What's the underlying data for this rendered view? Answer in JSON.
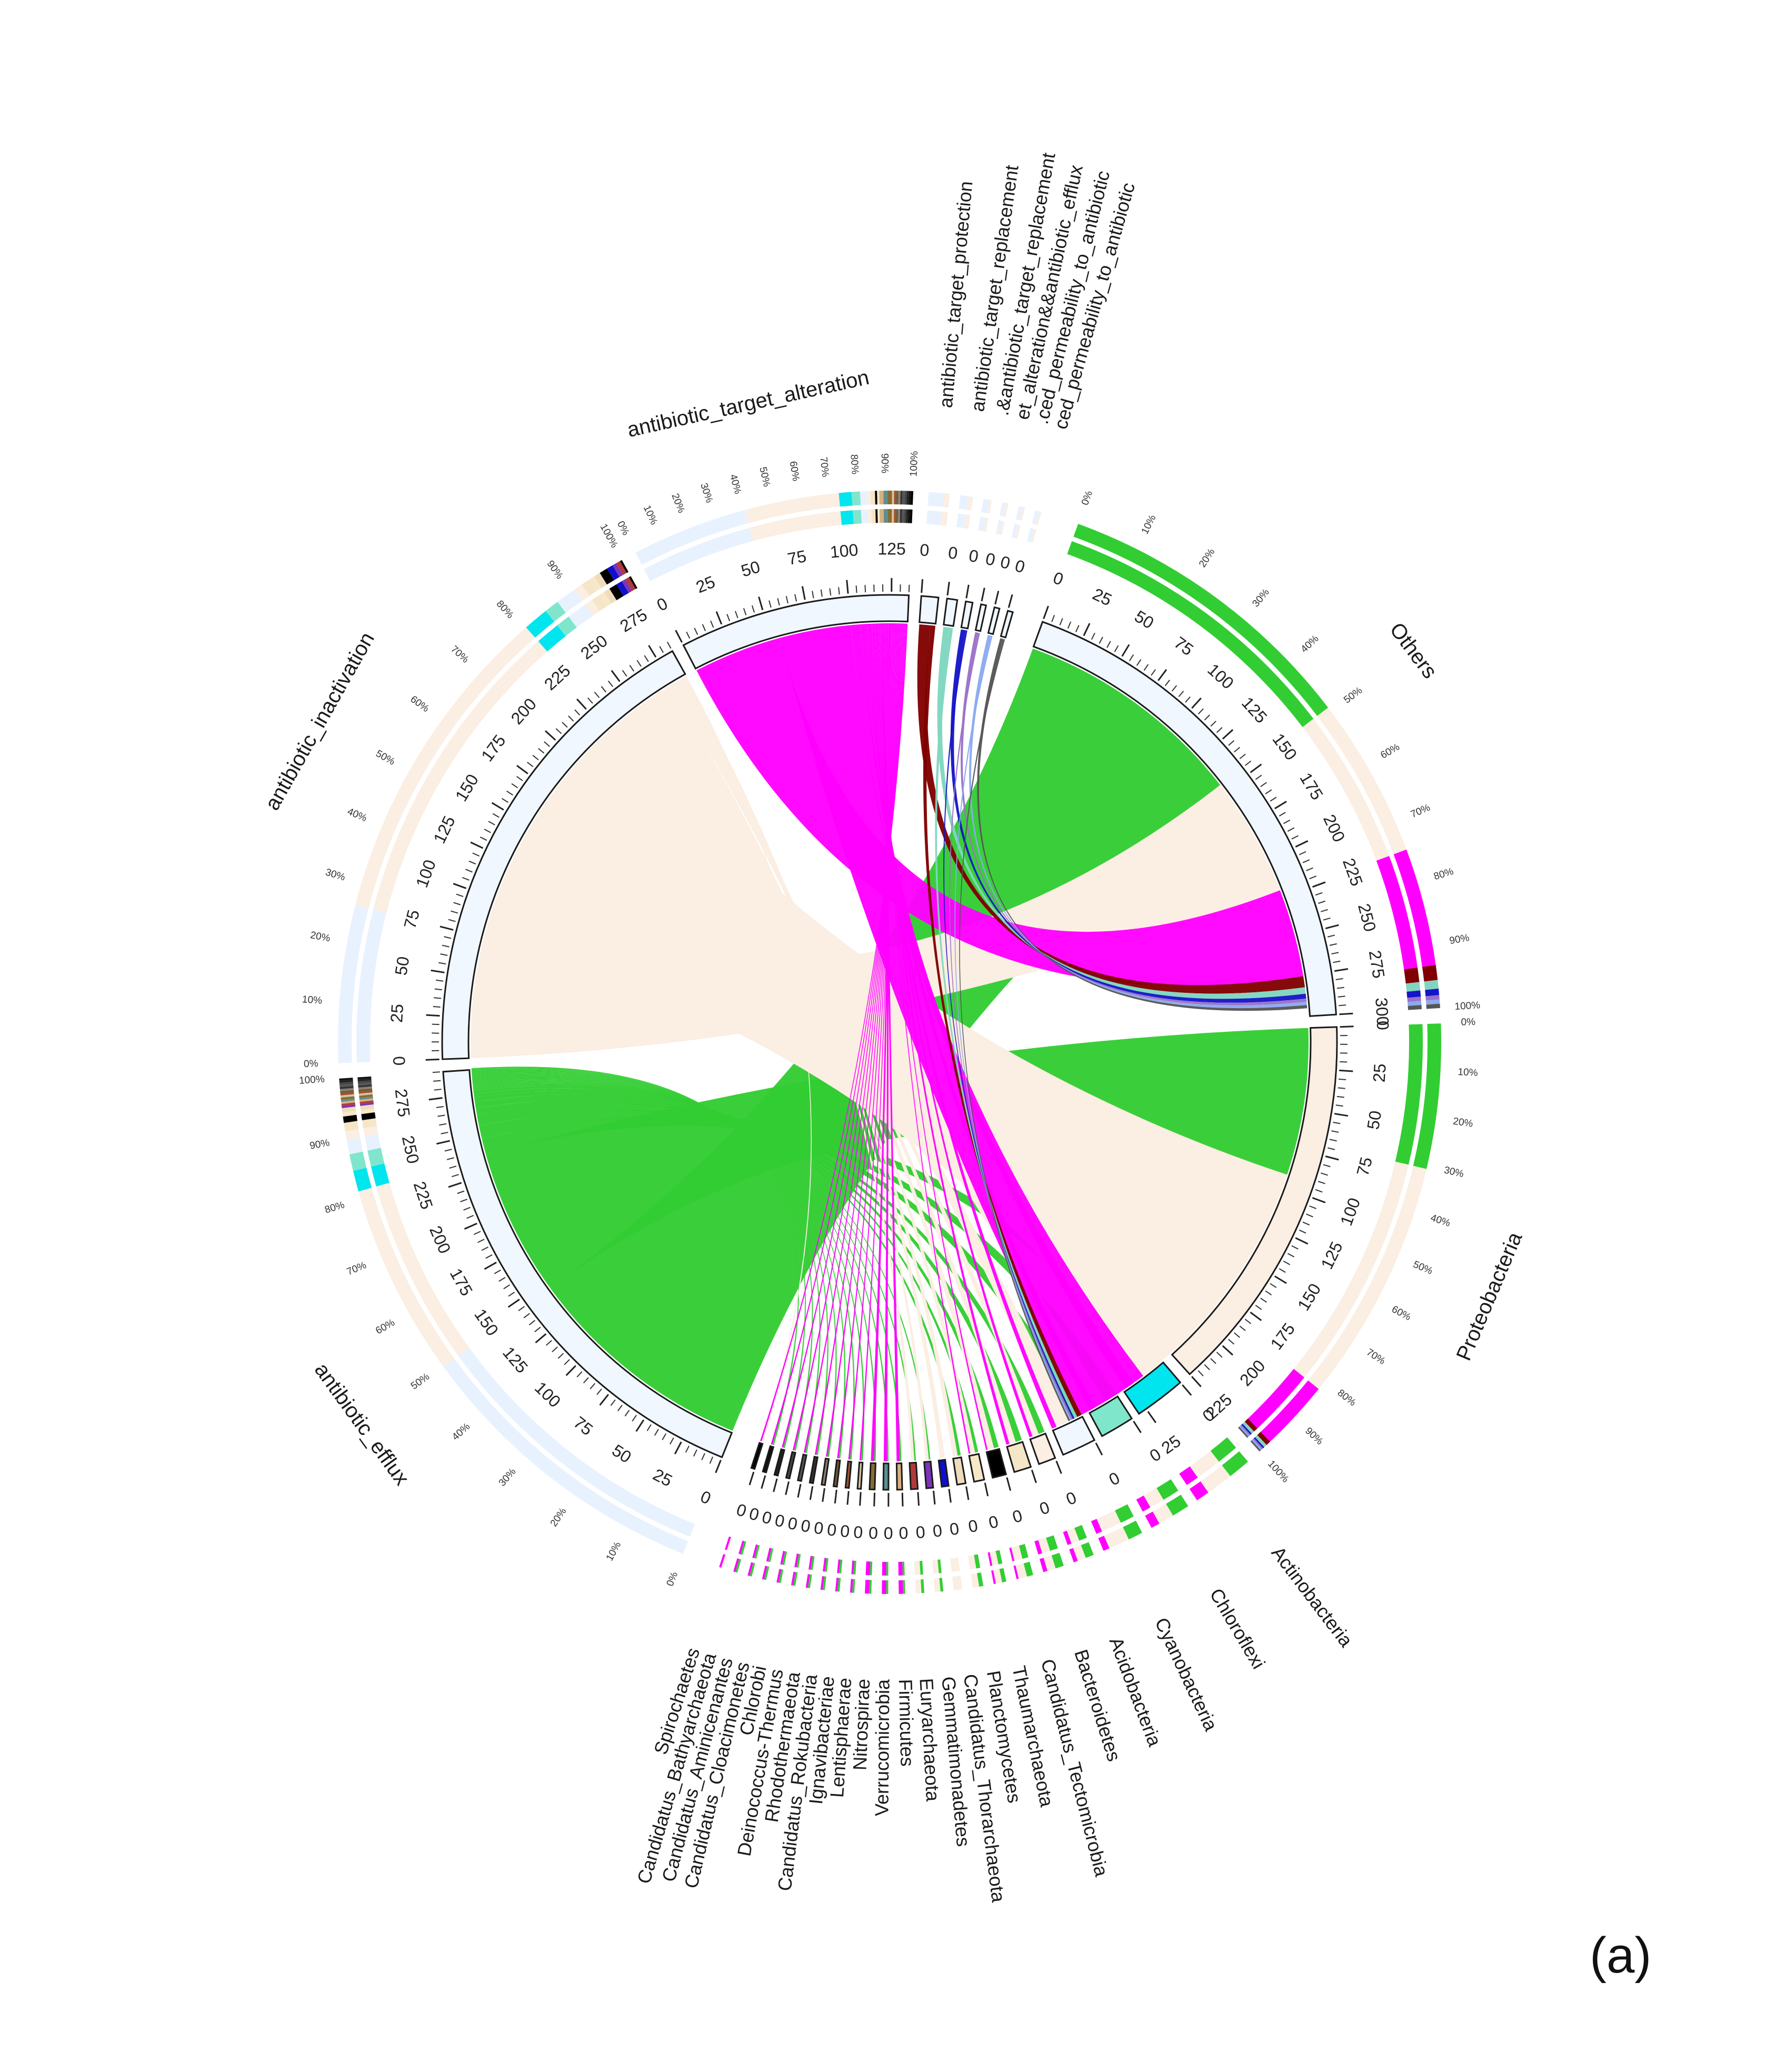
{
  "chart_data": {
    "type": "chord",
    "panel_label": "(a)",
    "mechanisms": [
      {
        "label": "antibiotic_efflux",
        "value": 290,
        "color": "#f0f7ff"
      },
      {
        "label": "antibiotic_inactivation",
        "value": 285,
        "color": "#f0f7ff"
      },
      {
        "label": "antibiotic_target_alteration",
        "value": 135,
        "color": "#f0f7ff"
      },
      {
        "label": "antibiotic_target_protection",
        "value": 10,
        "color": "#f0f7ff"
      },
      {
        "label": "antibiotic_target_replacement",
        "value": 6,
        "color": "#f0f7ff"
      },
      {
        "label": ".&antibiotic_target_replacement",
        "value": 4,
        "color": "#f0f7ff"
      },
      {
        "label": "et_alteration&&antibiotic_efflux",
        "value": 3,
        "color": "#f0f7ff"
      },
      {
        "label": ".ced_permeability_to_antibiotic",
        "value": 3,
        "color": "#f0f7ff"
      },
      {
        "label": "ced_permeability_to_antibiotic",
        "value": 3,
        "color": "#f0f7ff"
      }
    ],
    "phyla": [
      {
        "label": "Others",
        "value": 300,
        "color": "#f0f7ff"
      },
      {
        "label": "Proteobacteria",
        "value": 225,
        "color": "#fbeee2"
      },
      {
        "label": "Actinobacteria",
        "value": 30,
        "color": "#00e5ee"
      },
      {
        "label": "Chloroflexi",
        "value": 20,
        "color": "#7fe6cc"
      },
      {
        "label": "Cyanobacteria",
        "value": 20,
        "color": "#f0f7ff"
      },
      {
        "label": "Acidobacteria",
        "value": 10,
        "color": "#fbeee2"
      },
      {
        "label": "Bacteroidetes",
        "value": 10,
        "color": "#f5e6c8"
      },
      {
        "label": "Candidatus_Tectomicrobia",
        "value": 8,
        "color": "#000000"
      },
      {
        "label": "Thaumarchaeota",
        "value": 6,
        "color": "#f7e8c8"
      },
      {
        "label": "Planctomycetes",
        "value": 5,
        "color": "#eedcbb"
      },
      {
        "label": "Candidatus_Thorarchaeota",
        "value": 4,
        "color": "#1010cc"
      },
      {
        "label": "Gemmatimonadetes",
        "value": 4,
        "color": "#7a35b5"
      },
      {
        "label": "Euryarchaeota",
        "value": 4,
        "color": "#b03a3a"
      },
      {
        "label": "Firmicutes",
        "value": 3,
        "color": "#d8b080"
      },
      {
        "label": "Verrucomicrobia",
        "value": 3,
        "color": "#5d8f8f"
      },
      {
        "label": "Nitrospirae",
        "value": 3,
        "color": "#8a6a30"
      },
      {
        "label": "Lentisphaerae",
        "value": 2,
        "color": "#d7c2a0"
      },
      {
        "label": "Ignavibacteriae",
        "value": 2,
        "color": "#a0522d"
      },
      {
        "label": "Candidatus_Rokubacteria",
        "value": 2,
        "color": "#6e5a3a"
      },
      {
        "label": "Rhodothermaeota",
        "value": 2,
        "color": "#8f7f6f"
      },
      {
        "label": "Deinococcus-Thermus",
        "value": 2,
        "color": "#333333"
      },
      {
        "label": "Chlorobi",
        "value": 2,
        "color": "#555555"
      },
      {
        "label": "Candidatus_Cloacimonetes",
        "value": 2,
        "color": "#444444"
      },
      {
        "label": "Candidatus_Aminicenantes",
        "value": 2,
        "color": "#222222"
      },
      {
        "label": "Candidatus_Bathyarchaeota",
        "value": 2,
        "color": "#111111"
      },
      {
        "label": "Spirochaetes",
        "value": 2,
        "color": "#000000"
      }
    ],
    "mechanism_link_colors": {
      "antibiotic_efflux": "#32cd32",
      "antibiotic_inactivation": "#fbeee2",
      "antibiotic_target_alteration": "#ff00ff",
      "antibiotic_target_protection": "#800000",
      "antibiotic_target_replacement": "#7fd6c0",
      ".&antibiotic_target_replacement": "#1515c8",
      "et_alteration&&antibiotic_efflux": "#9a70c8",
      ".ced_permeability_to_antibiotic": "#8aaaf0",
      "ced_permeability_to_antibiotic": "#555555"
    },
    "links": [
      {
        "mechanism": "antibiotic_efflux",
        "phylum": "Others",
        "value": 145
      },
      {
        "mechanism": "antibiotic_efflux",
        "phylum": "Proteobacteria",
        "value": 92
      },
      {
        "mechanism": "antibiotic_efflux",
        "phylum": "Actinobacteria",
        "value": 10
      },
      {
        "mechanism": "antibiotic_efflux",
        "phylum": "Chloroflexi",
        "value": 8
      },
      {
        "mechanism": "antibiotic_efflux",
        "phylum": "Cyanobacteria",
        "value": 7
      },
      {
        "mechanism": "antibiotic_efflux",
        "phylum": "Acidobacteria",
        "value": 4
      },
      {
        "mechanism": "antibiotic_efflux",
        "phylum": "Bacteroidetes",
        "value": 4
      },
      {
        "mechanism": "antibiotic_efflux",
        "phylum": "Candidatus_Tectomicrobia",
        "value": 3
      },
      {
        "mechanism": "antibiotic_efflux",
        "phylum": "Thaumarchaeota",
        "value": 2
      },
      {
        "mechanism": "antibiotic_efflux",
        "phylum": "Planctomycetes",
        "value": 2
      },
      {
        "mechanism": "antibiotic_efflux",
        "phylum": "Gemmatimonadetes",
        "value": 1
      },
      {
        "mechanism": "antibiotic_efflux",
        "phylum": "Euryarchaeota",
        "value": 1
      },
      {
        "mechanism": "antibiotic_efflux",
        "phylum": "Firmicutes",
        "value": 1
      },
      {
        "mechanism": "antibiotic_efflux",
        "phylum": "Verrucomicrobia",
        "value": 1
      },
      {
        "mechanism": "antibiotic_efflux",
        "phylum": "Nitrospirae",
        "value": 1
      },
      {
        "mechanism": "antibiotic_efflux",
        "phylum": "Lentisphaerae",
        "value": 1
      },
      {
        "mechanism": "antibiotic_efflux",
        "phylum": "Ignavibacteriae",
        "value": 1
      },
      {
        "mechanism": "antibiotic_efflux",
        "phylum": "Candidatus_Rokubacteria",
        "value": 1
      },
      {
        "mechanism": "antibiotic_efflux",
        "phylum": "Rhodothermaeota",
        "value": 1
      },
      {
        "mechanism": "antibiotic_efflux",
        "phylum": "Deinococcus-Thermus",
        "value": 1
      },
      {
        "mechanism": "antibiotic_efflux",
        "phylum": "Chlorobi",
        "value": 1
      },
      {
        "mechanism": "antibiotic_efflux",
        "phylum": "Candidatus_Cloacimonetes",
        "value": 1
      },
      {
        "mechanism": "antibiotic_efflux",
        "phylum": "Candidatus_Aminicenantes",
        "value": 1
      },
      {
        "mechanism": "antibiotic_efflux",
        "phylum": "Candidatus_Bathyarchaeota",
        "value": 1
      },
      {
        "mechanism": "antibiotic_inactivation",
        "phylum": "Others",
        "value": 75
      },
      {
        "mechanism": "antibiotic_inactivation",
        "phylum": "Proteobacteria",
        "value": 155
      },
      {
        "mechanism": "antibiotic_inactivation",
        "phylum": "Actinobacteria",
        "value": 12
      },
      {
        "mechanism": "antibiotic_inactivation",
        "phylum": "Chloroflexi",
        "value": 7
      },
      {
        "mechanism": "antibiotic_inactivation",
        "phylum": "Cyanobacteria",
        "value": 10
      },
      {
        "mechanism": "antibiotic_inactivation",
        "phylum": "Acidobacteria",
        "value": 4
      },
      {
        "mechanism": "antibiotic_inactivation",
        "phylum": "Bacteroidetes",
        "value": 4
      },
      {
        "mechanism": "antibiotic_inactivation",
        "phylum": "Thaumarchaeota",
        "value": 3
      },
      {
        "mechanism": "antibiotic_inactivation",
        "phylum": "Planctomycetes",
        "value": 3
      },
      {
        "mechanism": "antibiotic_inactivation",
        "phylum": "Candidatus_Tectomicrobia",
        "value": 4
      },
      {
        "mechanism": "antibiotic_inactivation",
        "phylum": "Candidatus_Thorarchaeota",
        "value": 3
      },
      {
        "mechanism": "antibiotic_inactivation",
        "phylum": "Gemmatimonadetes",
        "value": 2
      },
      {
        "mechanism": "antibiotic_inactivation",
        "phylum": "Euryarchaeota",
        "value": 2
      },
      {
        "mechanism": "antibiotic_inactivation",
        "phylum": "Spirochaetes",
        "value": 1
      },
      {
        "mechanism": "antibiotic_target_alteration",
        "phylum": "Others",
        "value": 55
      },
      {
        "mechanism": "antibiotic_target_alteration",
        "phylum": "Proteobacteria",
        "value": 45
      },
      {
        "mechanism": "antibiotic_target_alteration",
        "phylum": "Actinobacteria",
        "value": 6
      },
      {
        "mechanism": "antibiotic_target_alteration",
        "phylum": "Chloroflexi",
        "value": 4
      },
      {
        "mechanism": "antibiotic_target_alteration",
        "phylum": "Cyanobacteria",
        "value": 3
      },
      {
        "mechanism": "antibiotic_target_alteration",
        "phylum": "Acidobacteria",
        "value": 2
      },
      {
        "mechanism": "antibiotic_target_alteration",
        "phylum": "Bacteroidetes",
        "value": 2
      },
      {
        "mechanism": "antibiotic_target_alteration",
        "phylum": "Candidatus_Tectomicrobia",
        "value": 1
      },
      {
        "mechanism": "antibiotic_target_alteration",
        "phylum": "Thaumarchaeota",
        "value": 1
      },
      {
        "mechanism": "antibiotic_target_alteration",
        "phylum": "Firmicutes",
        "value": 2
      },
      {
        "mechanism": "antibiotic_target_alteration",
        "phylum": "Verrucomicrobia",
        "value": 2
      },
      {
        "mechanism": "antibiotic_target_alteration",
        "phylum": "Nitrospirae",
        "value": 2
      },
      {
        "mechanism": "antibiotic_target_alteration",
        "phylum": "Lentisphaerae",
        "value": 1
      },
      {
        "mechanism": "antibiotic_target_alteration",
        "phylum": "Ignavibacteriae",
        "value": 1
      },
      {
        "mechanism": "antibiotic_target_alteration",
        "phylum": "Candidatus_Rokubacteria",
        "value": 1
      },
      {
        "mechanism": "antibiotic_target_alteration",
        "phylum": "Rhodothermaeota",
        "value": 1
      },
      {
        "mechanism": "antibiotic_target_alteration",
        "phylum": "Deinococcus-Thermus",
        "value": 1
      },
      {
        "mechanism": "antibiotic_target_alteration",
        "phylum": "Chlorobi",
        "value": 1
      },
      {
        "mechanism": "antibiotic_target_alteration",
        "phylum": "Candidatus_Cloacimonetes",
        "value": 1
      },
      {
        "mechanism": "antibiotic_target_alteration",
        "phylum": "Candidatus_Aminicenantes",
        "value": 1
      },
      {
        "mechanism": "antibiotic_target_alteration",
        "phylum": "Candidatus_Bathyarchaeota",
        "value": 1
      },
      {
        "mechanism": "antibiotic_target_alteration",
        "phylum": "Spirochaetes",
        "value": 1
      },
      {
        "mechanism": "antibiotic_target_protection",
        "phylum": "Others",
        "value": 7
      },
      {
        "mechanism": "antibiotic_target_protection",
        "phylum": "Proteobacteria",
        "value": 3
      },
      {
        "mechanism": "antibiotic_target_replacement",
        "phylum": "Others",
        "value": 4
      },
      {
        "mechanism": "antibiotic_target_replacement",
        "phylum": "Proteobacteria",
        "value": 2
      },
      {
        "mechanism": ".&antibiotic_target_replacement",
        "phylum": "Others",
        "value": 3
      },
      {
        "mechanism": ".&antibiotic_target_replacement",
        "phylum": "Proteobacteria",
        "value": 1
      },
      {
        "mechanism": "et_alteration&&antibiotic_efflux",
        "phylum": "Others",
        "value": 2
      },
      {
        "mechanism": "et_alteration&&antibiotic_efflux",
        "phylum": "Proteobacteria",
        "value": 1
      },
      {
        "mechanism": ".ced_permeability_to_antibiotic",
        "phylum": "Others",
        "value": 2
      },
      {
        "mechanism": ".ced_permeability_to_antibiotic",
        "phylum": "Proteobacteria",
        "value": 1
      },
      {
        "mechanism": "ced_permeability_to_antibiotic",
        "phylum": "Others",
        "value": 2
      },
      {
        "mechanism": "ced_permeability_to_antibiotic",
        "phylum": "Proteobacteria",
        "value": 1
      }
    ],
    "tick_step": 25,
    "percent_ticks": [
      "0%",
      "10%",
      "20%",
      "30%",
      "40%",
      "50%",
      "60%",
      "70%",
      "80%",
      "90%",
      "100%"
    ]
  }
}
